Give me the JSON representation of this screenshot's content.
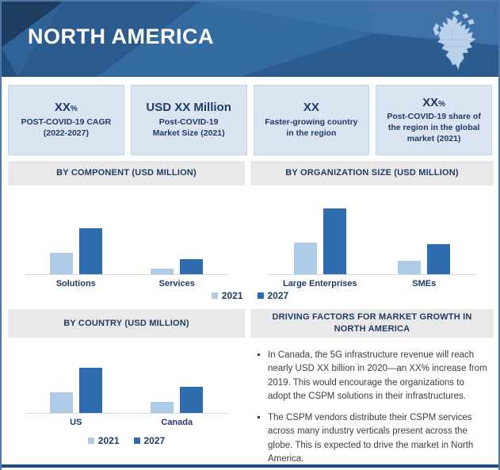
{
  "header": {
    "title": "NORTH AMERICA"
  },
  "stats": [
    {
      "value": "XX",
      "unit": "%",
      "label": "POST-COVID-19 CAGR\n(2022-2027)"
    },
    {
      "value": "USD XX Million",
      "unit": "",
      "label": "Post-COVID-19\nMarket Size (2021)"
    },
    {
      "value": "XX",
      "unit": "",
      "label": "Faster-growing country\nin the region"
    },
    {
      "value": "XX",
      "unit": "%",
      "label": "Post-COVID-19 share of\nthe region in the global\nmarket (2021)"
    }
  ],
  "legend": {
    "items": [
      {
        "label": "2021",
        "color": "#aecbe8"
      },
      {
        "label": "2027",
        "color": "#2e6cad"
      }
    ]
  },
  "chart_data": [
    {
      "type": "bar",
      "title": "BY COMPONENT (USD MILLION)",
      "categories": [
        "Solutions",
        "Services"
      ],
      "series": [
        {
          "name": "2021",
          "color": "#aecbe8",
          "values": [
            47,
            12
          ]
        },
        {
          "name": "2027",
          "color": "#2e6cad",
          "values": [
            100,
            33
          ]
        }
      ],
      "xlabel": "",
      "ylabel": "",
      "ylim": [
        0,
        100
      ],
      "scale": "relative-height-percent (actual figures masked as XX)",
      "grid": false,
      "legend_position": "bottom-center-shared"
    },
    {
      "type": "bar",
      "title": "BY ORGANIZATION SIZE (USD MILLION)",
      "categories": [
        "Large Enterprises",
        "SMEs"
      ],
      "series": [
        {
          "name": "2021",
          "color": "#aecbe8",
          "values": [
            48,
            20
          ]
        },
        {
          "name": "2027",
          "color": "#2e6cad",
          "values": [
            100,
            46
          ]
        }
      ],
      "xlabel": "",
      "ylabel": "",
      "ylim": [
        0,
        100
      ],
      "scale": "relative-height-percent (actual figures masked as XX)",
      "grid": false,
      "legend_position": "bottom-center-shared"
    },
    {
      "type": "bar",
      "title": "BY COUNTRY (USD MILLION)",
      "categories": [
        "US",
        "Canada"
      ],
      "series": [
        {
          "name": "2021",
          "color": "#aecbe8",
          "values": [
            46,
            25
          ]
        },
        {
          "name": "2027",
          "color": "#2e6cad",
          "values": [
            100,
            58
          ]
        }
      ],
      "xlabel": "",
      "ylabel": "",
      "ylim": [
        0,
        100
      ],
      "scale": "relative-height-percent (actual figures masked as XX)",
      "grid": false,
      "legend_position": "bottom-center"
    }
  ],
  "driving": {
    "title": "DRIVING FACTORS FOR MARKET GROWTH IN\nNORTH AMERICA",
    "bullets": [
      "In Canada, the 5G infrastructure revenue will reach nearly USD XX billion in 2020—an XX% increase from 2019. This would encourage the organizations to adopt the CSPM solutions in their infrastructures.",
      "The CSPM vendors distribute their CSPM services across many industry verticals present across the globe. This is expected to drive the market in North America."
    ]
  },
  "colors": {
    "header_base": "#2f6397",
    "header_dark_facet": "#1d3e60",
    "header_light_facet": "#3f73a8",
    "map_fill": "#b9d1e9",
    "card_bg": "#dbe5f1",
    "navy_text": "#203a66",
    "section_bg": "#e9e9e9",
    "bar_2021": "#aecbe8",
    "bar_2027": "#2e6cad",
    "bottom_bar": "#1f4e79"
  }
}
